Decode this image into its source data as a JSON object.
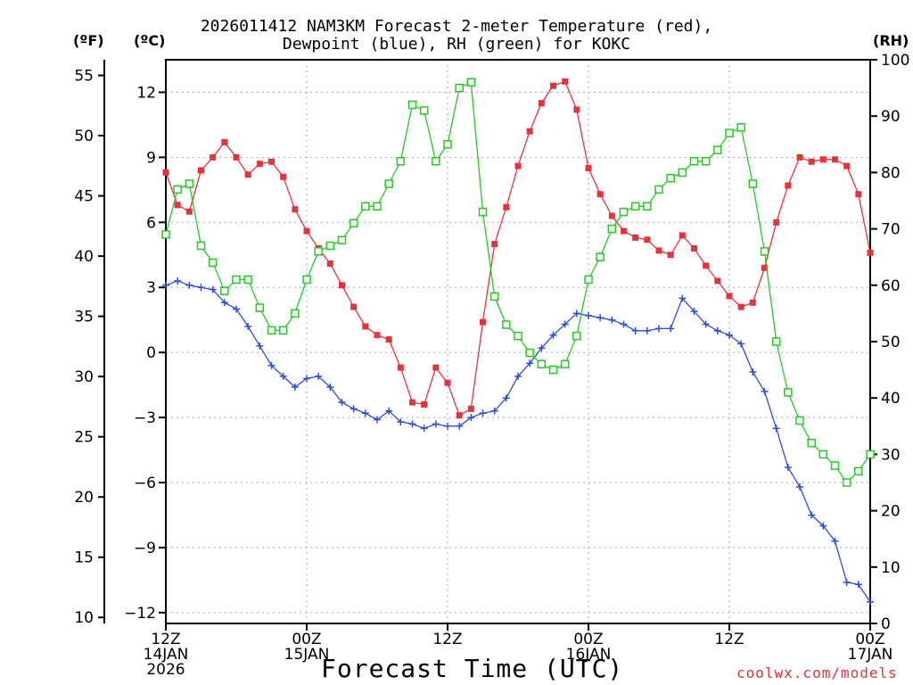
{
  "title": {
    "line1": "2026011412 NAM3KM Forecast 2-meter Temperature (red),",
    "line2": "Dewpoint (blue), RH (green) for KOKC"
  },
  "axes": {
    "left_f_unit": "(ºF)",
    "left_c_unit": "(ºC)",
    "right_unit": "(RH)",
    "xlabel": "Forecast Time (UTC)"
  },
  "credit": "coolwx.com/models",
  "chart_data": {
    "type": "line",
    "title": "2026011412 NAM3KM Forecast 2-meter Temperature (red), Dewpoint (blue), RH (green) for KOKC",
    "xlabel": "Forecast Time (UTC)",
    "x_hours": [
      0,
      1,
      2,
      3,
      4,
      5,
      6,
      7,
      8,
      9,
      10,
      11,
      12,
      13,
      14,
      15,
      16,
      17,
      18,
      19,
      20,
      21,
      22,
      23,
      24,
      25,
      26,
      27,
      28,
      29,
      30,
      31,
      32,
      33,
      34,
      35,
      36,
      37,
      38,
      39,
      40,
      41,
      42,
      43,
      44,
      45,
      46,
      47,
      48,
      49,
      50,
      51,
      52,
      53,
      54,
      55,
      56,
      57,
      58,
      59,
      60
    ],
    "xlim": [
      0,
      60
    ],
    "x_ticks": [
      {
        "hour": 0,
        "lines": [
          "12Z",
          "14JAN",
          "2026"
        ]
      },
      {
        "hour": 12,
        "lines": [
          "00Z",
          "15JAN"
        ]
      },
      {
        "hour": 24,
        "lines": [
          "12Z",
          ""
        ]
      },
      {
        "hour": 36,
        "lines": [
          "00Z",
          "16JAN"
        ]
      },
      {
        "hour": 48,
        "lines": [
          "12Z",
          ""
        ]
      },
      {
        "hour": 60,
        "lines": [
          "00Z",
          "17JAN"
        ]
      }
    ],
    "celsius_axis": {
      "range": [
        -12.5,
        13.5
      ],
      "ticks": [
        12,
        9,
        6,
        3,
        0,
        -3,
        -6,
        -9,
        -12
      ],
      "tick_labels": [
        "12",
        "9",
        "6",
        "3",
        "0",
        "−3",
        "−6",
        "−9",
        "−12"
      ]
    },
    "fahrenheit_axis": {
      "ticks": [
        55,
        50,
        45,
        40,
        35,
        30,
        25,
        20,
        15,
        10
      ],
      "tick_labels": [
        "55",
        "50",
        "45",
        "40",
        "35",
        "30",
        "25",
        "20",
        "15",
        "10"
      ]
    },
    "rh_axis": {
      "range": [
        0,
        100
      ],
      "ticks": [
        100,
        90,
        80,
        70,
        60,
        50,
        40,
        30,
        20,
        10,
        0
      ],
      "tick_labels": [
        "100",
        "90",
        "80",
        "70",
        "60",
        "50",
        "40",
        "30",
        "20",
        "10",
        "0"
      ]
    },
    "grid": true,
    "series": [
      {
        "name": "2-meter Temperature",
        "unit": "C",
        "color": "#e8323a",
        "marker": "filled-square",
        "values": [
          8.3,
          6.8,
          6.5,
          8.4,
          9.0,
          9.7,
          9.0,
          8.2,
          8.7,
          8.8,
          8.1,
          6.6,
          5.6,
          4.8,
          4.1,
          3.1,
          2.1,
          1.2,
          0.8,
          0.6,
          -0.7,
          -2.3,
          -2.4,
          -0.7,
          -1.4,
          -2.9,
          -2.6,
          1.4,
          5.0,
          6.7,
          8.6,
          10.2,
          11.5,
          12.3,
          12.5,
          11.2,
          8.5,
          7.3,
          6.3,
          5.6,
          5.3,
          5.2,
          4.7,
          4.5,
          5.4,
          4.8,
          4.0,
          3.3,
          2.6,
          2.1,
          2.3,
          3.9,
          6.0,
          7.7,
          9.0,
          8.8,
          8.9,
          8.9,
          8.6,
          7.3,
          4.6
        ]
      },
      {
        "name": "Dewpoint",
        "unit": "C",
        "color": "#2d4de0",
        "marker": "plus",
        "values": [
          3.1,
          3.3,
          3.1,
          3.0,
          2.9,
          2.3,
          2.0,
          1.2,
          0.3,
          -0.6,
          -1.1,
          -1.6,
          -1.2,
          -1.1,
          -1.6,
          -2.3,
          -2.6,
          -2.8,
          -3.1,
          -2.7,
          -3.2,
          -3.3,
          -3.5,
          -3.3,
          -3.4,
          -3.4,
          -3.0,
          -2.8,
          -2.7,
          -2.1,
          -1.1,
          -0.5,
          0.2,
          0.8,
          1.3,
          1.8,
          1.7,
          1.6,
          1.5,
          1.3,
          1.0,
          1.0,
          1.1,
          1.1,
          2.5,
          1.9,
          1.3,
          1.0,
          0.8,
          0.4,
          -0.9,
          -1.8,
          -3.5,
          -5.3,
          -6.2,
          -7.5,
          -8.0,
          -8.7,
          -10.6,
          -10.7,
          -11.5
        ]
      },
      {
        "name": "RH",
        "unit": "%",
        "color": "#22cc22",
        "marker": "open-square",
        "values": [
          69,
          77,
          78,
          67,
          64,
          59,
          61,
          61,
          56,
          52,
          52,
          55,
          61,
          66,
          67,
          68,
          71,
          74,
          74,
          78,
          82,
          92,
          91,
          82,
          85,
          95,
          96,
          73,
          58,
          53,
          51,
          48,
          46,
          45,
          46,
          51,
          61,
          65,
          70,
          73,
          74,
          74,
          77,
          79,
          80,
          82,
          82,
          84,
          87,
          88,
          78,
          66,
          50,
          41,
          36,
          32,
          30,
          28,
          25,
          27,
          30
        ]
      }
    ]
  }
}
